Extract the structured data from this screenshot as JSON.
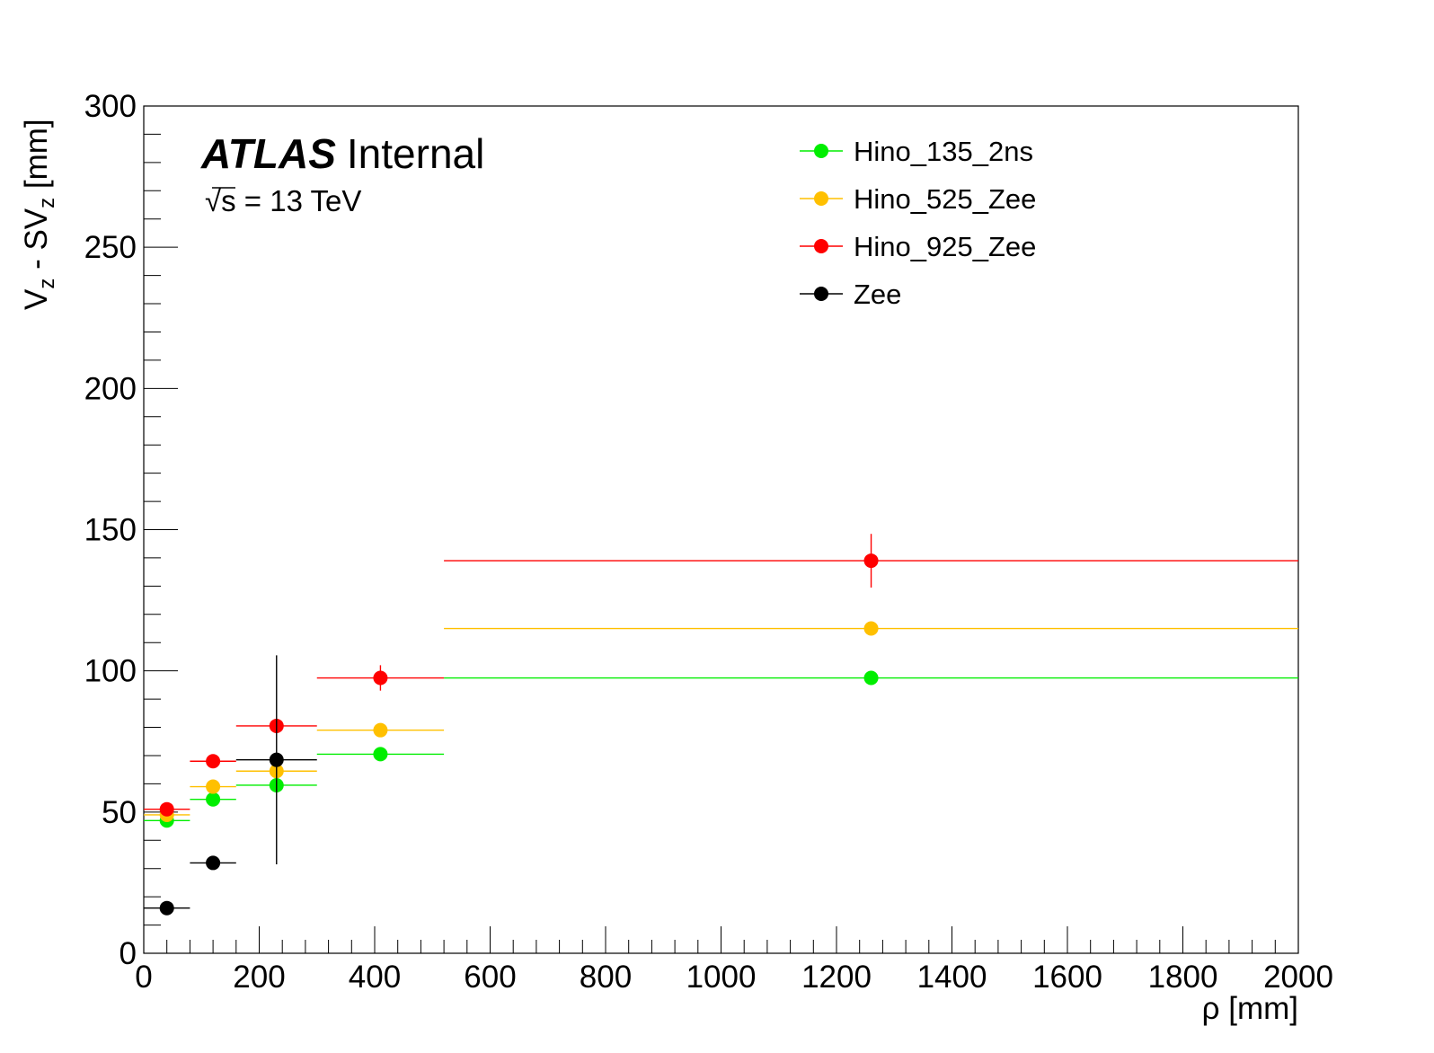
{
  "chart_data": {
    "type": "scatter",
    "atlas_label": "ATLAS",
    "atlas_status": "Internal",
    "energy_label": {
      "pre": "√s",
      "post": " = 13 TeV"
    },
    "xlabel": "ρ [mm]",
    "ylabel": {
      "v": "V",
      "sub1": "z",
      "mid": " - SV",
      "sub2": "z",
      "unit": " [mm]"
    },
    "xlim": [
      0,
      2000
    ],
    "ylim": [
      0,
      300
    ],
    "x_ticks": [
      "0",
      "200",
      "400",
      "600",
      "800",
      "1000",
      "1200",
      "1400",
      "1600",
      "1800",
      "2000"
    ],
    "y_ticks": [
      "0",
      "50",
      "100",
      "150",
      "200",
      "250",
      "300"
    ],
    "legend_position": "top-right",
    "series": [
      {
        "name": "Hino_135_2ns",
        "color": "#00ee00",
        "points": [
          {
            "x": 40,
            "xlo": 0,
            "xhi": 80,
            "y": 47,
            "yerr": 1
          },
          {
            "x": 120,
            "xlo": 80,
            "xhi": 160,
            "y": 54.5,
            "yerr": 1
          },
          {
            "x": 230,
            "xlo": 160,
            "xhi": 300,
            "y": 59.5,
            "yerr": 1
          },
          {
            "x": 410,
            "xlo": 300,
            "xhi": 520,
            "y": 70.5,
            "yerr": 1
          },
          {
            "x": 1260,
            "xlo": 520,
            "xhi": 2000,
            "y": 97.5,
            "yerr": 1.5
          }
        ]
      },
      {
        "name": "Hino_525_Zee",
        "color": "#ffc000",
        "points": [
          {
            "x": 40,
            "xlo": 0,
            "xhi": 80,
            "y": 49,
            "yerr": 1
          },
          {
            "x": 120,
            "xlo": 80,
            "xhi": 160,
            "y": 59,
            "yerr": 1
          },
          {
            "x": 230,
            "xlo": 160,
            "xhi": 300,
            "y": 64.5,
            "yerr": 1
          },
          {
            "x": 410,
            "xlo": 300,
            "xhi": 520,
            "y": 79,
            "yerr": 1
          },
          {
            "x": 1260,
            "xlo": 520,
            "xhi": 2000,
            "y": 115,
            "yerr": 2
          }
        ]
      },
      {
        "name": "Hino_925_Zee",
        "color": "#ff0000",
        "points": [
          {
            "x": 40,
            "xlo": 0,
            "xhi": 80,
            "y": 51,
            "yerr": 1
          },
          {
            "x": 120,
            "xlo": 80,
            "xhi": 160,
            "y": 68,
            "yerr": 2
          },
          {
            "x": 230,
            "xlo": 160,
            "xhi": 300,
            "y": 80.5,
            "yerr": 2
          },
          {
            "x": 410,
            "xlo": 300,
            "xhi": 520,
            "y": 97.5,
            "yerr": 4.5
          },
          {
            "x": 1260,
            "xlo": 520,
            "xhi": 2000,
            "y": 139,
            "yerr": 9.5
          }
        ]
      },
      {
        "name": "Zee",
        "color": "#000000",
        "points": [
          {
            "x": 40,
            "xlo": 0,
            "xhi": 80,
            "y": 16,
            "yerr": 1
          },
          {
            "x": 120,
            "xlo": 80,
            "xhi": 160,
            "y": 32,
            "yerr": 1.5
          },
          {
            "x": 230,
            "xlo": 160,
            "xhi": 300,
            "y": 68.5,
            "yerr": 37
          }
        ]
      }
    ]
  }
}
